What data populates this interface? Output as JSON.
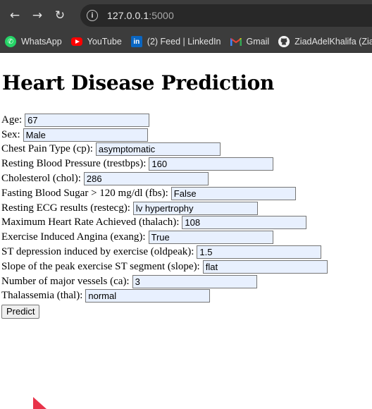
{
  "browser": {
    "url_host": "127.0.0.1",
    "url_port": ":5000",
    "nav_icons": [
      "back-arrow-icon",
      "forward-arrow-icon",
      "reload-icon",
      "site-info-icon"
    ],
    "bookmarks": [
      {
        "label": "WhatsApp",
        "icon": "whatsapp-icon"
      },
      {
        "label": "YouTube",
        "icon": "youtube-icon"
      },
      {
        "label": "(2) Feed | LinkedIn",
        "icon": "linkedin-icon"
      },
      {
        "label": "Gmail",
        "icon": "gmail-icon"
      },
      {
        "label": "ZiadAdelKhalifa (Zia...",
        "icon": "github-icon"
      }
    ]
  },
  "page": {
    "title": "Heart Disease Prediction",
    "fields": [
      {
        "label": "Age:",
        "value": "67"
      },
      {
        "label": "Sex:",
        "value": "Male"
      },
      {
        "label": "Chest Pain Type (cp):",
        "value": "asymptomatic"
      },
      {
        "label": "Resting Blood Pressure (trestbps):",
        "value": "160"
      },
      {
        "label": "Cholesterol (chol):",
        "value": "286"
      },
      {
        "label": "Fasting Blood Sugar > 120 mg/dl (fbs):",
        "value": "False"
      },
      {
        "label": "Resting ECG results (restecg):",
        "value": "lv hypertrophy"
      },
      {
        "label": "Maximum Heart Rate Achieved (thalach):",
        "value": "108"
      },
      {
        "label": "Exercise Induced Angina (exang):",
        "value": "True"
      },
      {
        "label": "ST depression induced by exercise (oldpeak):",
        "value": "1.5"
      },
      {
        "label": "Slope of the peak exercise ST segment (slope):",
        "value": "flat"
      },
      {
        "label": "Number of major vessels (ca):",
        "value": "3"
      },
      {
        "label": "Thalassemia (thal):",
        "value": "normal"
      }
    ],
    "submit_label": "Predict"
  },
  "colors": {
    "chrome_bg": "#3c3c3c",
    "omnibox_bg": "#282828",
    "autofill_bg": "#e8f0fe",
    "cursor": "#e8334a"
  }
}
